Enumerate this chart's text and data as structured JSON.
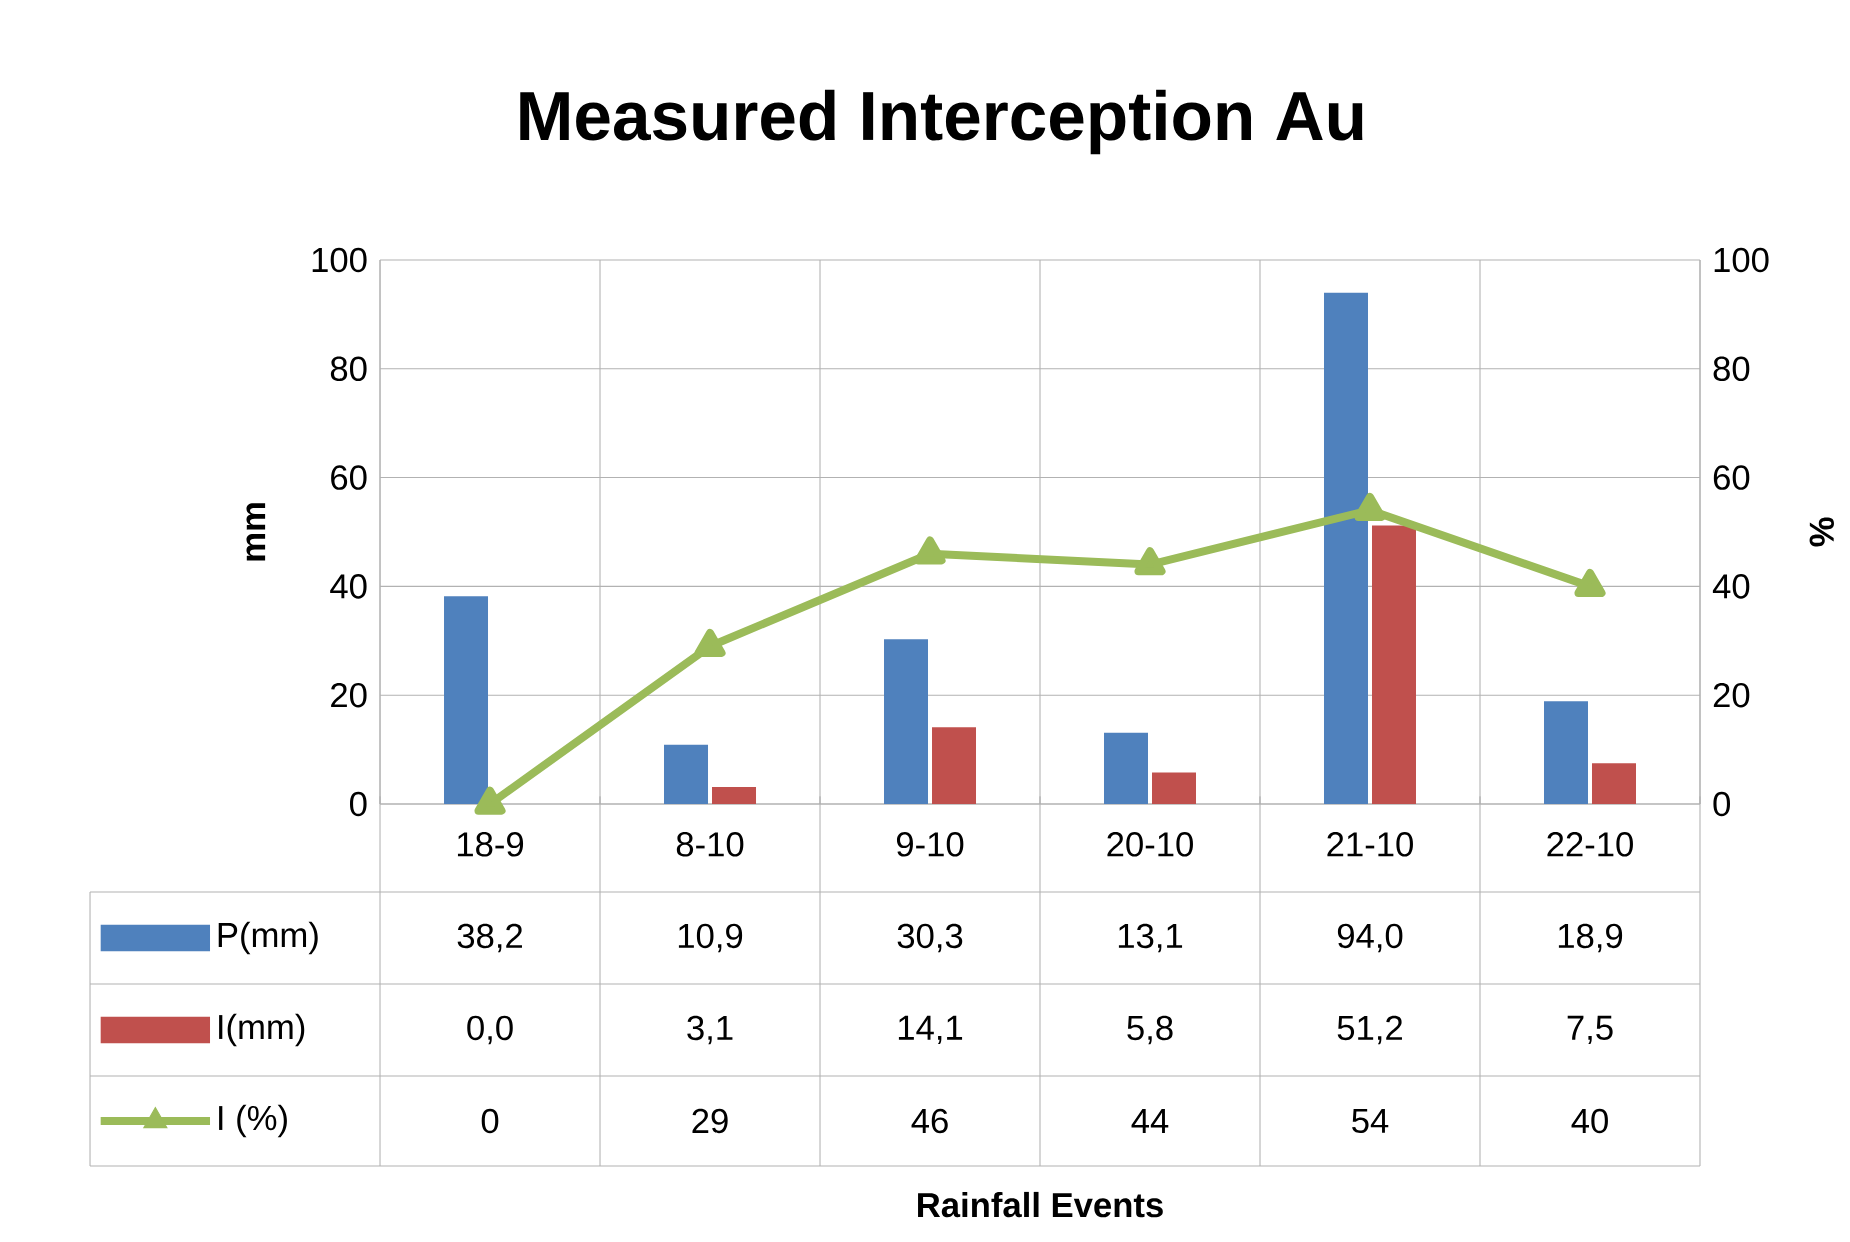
{
  "chart_data": {
    "type": "bar",
    "title": "Measured Interception  Au",
    "categories": [
      "18-9",
      "8-10",
      "9-10",
      "20-10",
      "21-10",
      "22-10"
    ],
    "annotations": [
      "Rainfall Events"
    ],
    "ylabel": "mm",
    "y2label": "%",
    "ylim": [
      0,
      100
    ],
    "yticks": [
      0,
      20,
      40,
      60,
      80,
      100
    ],
    "y2lim": [
      0,
      100
    ],
    "y2ticks": [
      0,
      20,
      40,
      60,
      80,
      100
    ],
    "grid": true,
    "legend": "bottom",
    "series": [
      {
        "name": "P(mm)",
        "color": "#4f81bd",
        "values": [
          38.2,
          10.9,
          30.3,
          13.1,
          94.0,
          18.9
        ],
        "value_labels": [
          "38,2",
          "10,9",
          "30,3",
          "13,1",
          "94,0",
          "18,9"
        ]
      },
      {
        "name": "I(mm)",
        "color": "#c0504d",
        "values": [
          0.0,
          3.1,
          14.1,
          5.8,
          51.2,
          7.5
        ],
        "value_labels": [
          "0,0",
          "3,1",
          "14,1",
          "5,8",
          "51,2",
          "7,5"
        ]
      },
      {
        "name": "I (%)",
        "type": "line",
        "axis": "y2",
        "marker": "triangle",
        "color": "#9bbb59",
        "values": [
          0,
          29,
          46,
          44,
          54,
          40
        ],
        "value_labels": [
          "0",
          "29",
          "46",
          "44",
          "54",
          "40"
        ]
      }
    ]
  }
}
